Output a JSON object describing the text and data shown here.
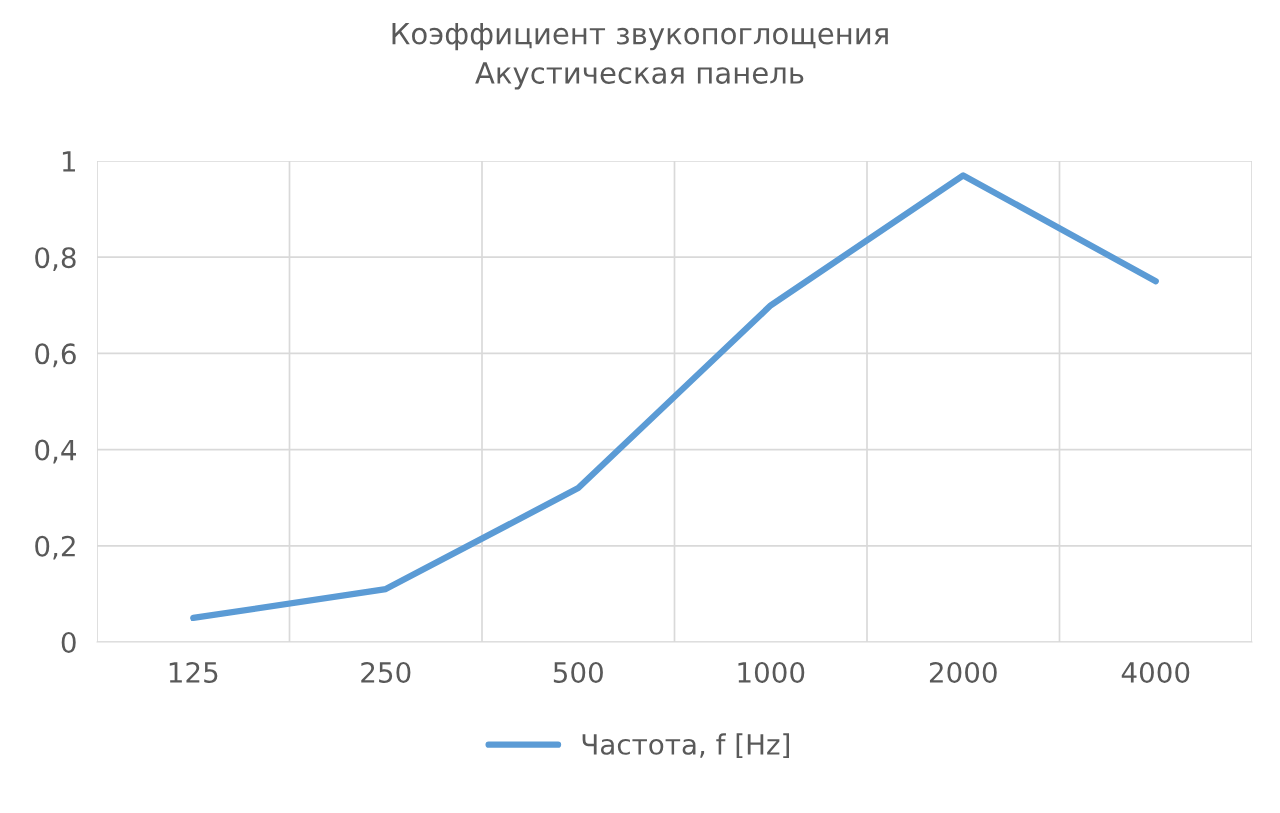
{
  "chart_data": {
    "type": "line",
    "title": "Коэффициент звукопоглощения\nАкустическая панель",
    "categories": [
      "125",
      "250",
      "500",
      "1000",
      "2000",
      "4000"
    ],
    "series": [
      {
        "name": "Частота, f [Hz]",
        "color": "#5b9bd5",
        "values": [
          0.05,
          0.11,
          0.32,
          0.7,
          0.97,
          0.75
        ]
      }
    ],
    "ylim": [
      0,
      1
    ],
    "yticks": [
      0,
      {
        "value": 0.2,
        "label": "0,2"
      },
      {
        "value": 0.4,
        "label": "0,4"
      },
      {
        "value": 0.6,
        "label": "0,6"
      },
      {
        "value": 0.8,
        "label": "0,8"
      },
      1
    ],
    "grid": true,
    "legend": "bottom",
    "marker": "none",
    "line_style": "solid"
  }
}
